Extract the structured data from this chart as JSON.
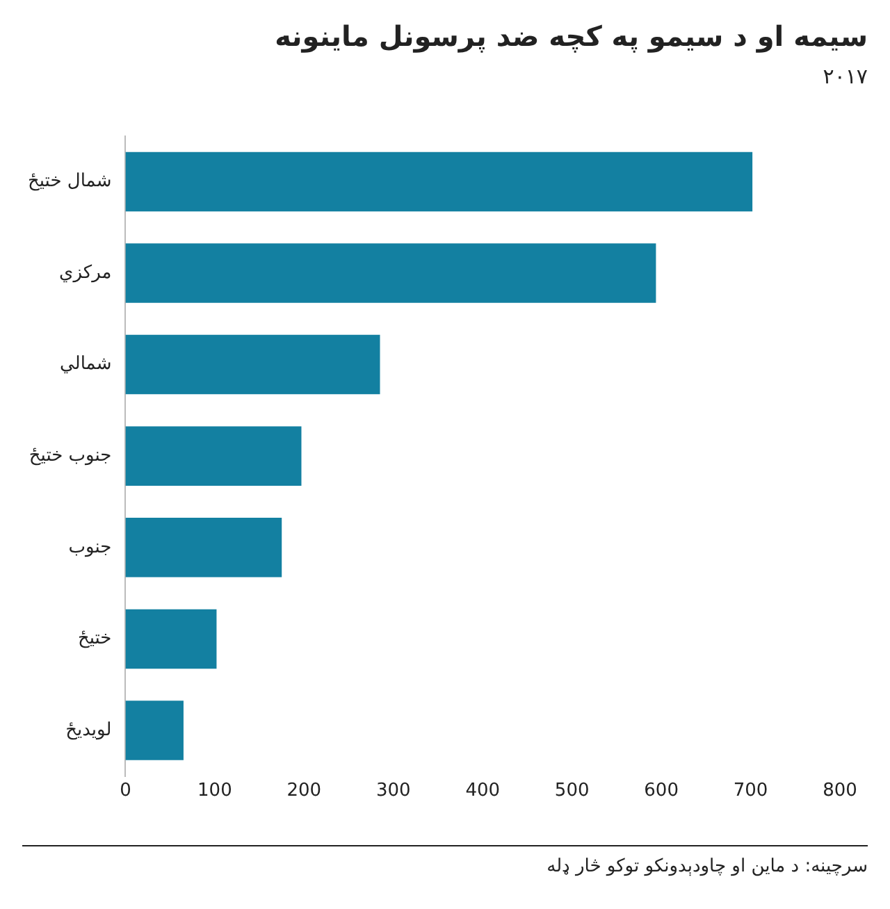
{
  "chart_data": {
    "type": "bar",
    "orientation": "horizontal",
    "title": "سیمه او د سیمو په کچه ضد پرسونل ماینونه",
    "subtitle": "۲۰۱۷",
    "categories": [
      "شمال ختیځ",
      "مرکزي",
      "شمالي",
      "جنوب ختیځ",
      "جنوب",
      "ختیځ",
      "لویدیځ"
    ],
    "values": [
      702,
      594,
      285,
      197,
      175,
      102,
      65
    ],
    "color": "#1380a1",
    "xlim": [
      0,
      800
    ],
    "xticks": [
      0,
      100,
      200,
      300,
      400,
      500,
      600,
      700,
      800
    ],
    "grid": false,
    "legend": false,
    "annotations": [
      "سرچینه: د ماین او چاودېدونکو توکو څار ډله"
    ]
  }
}
